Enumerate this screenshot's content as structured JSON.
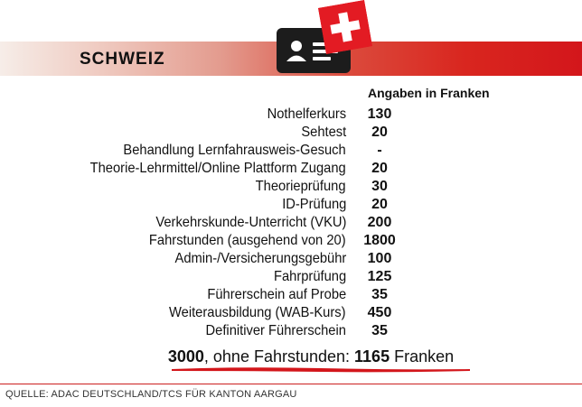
{
  "country": "SCHWEIZ",
  "unit_header": "Angaben in  Franken",
  "items": [
    {
      "label": "Nothelferkurs",
      "value": "130"
    },
    {
      "label": "Sehtest",
      "value": "20"
    },
    {
      "label": "Behandlung Lernfahrausweis-Gesuch",
      "value": "-"
    },
    {
      "label": "Theorie-Lehrmittel/Online Plattform Zugang",
      "value": "20"
    },
    {
      "label": "Theorieprüfung",
      "value": "30"
    },
    {
      "label": "ID-Prüfung",
      "value": "20"
    },
    {
      "label": "Verkehrskunde-Unterricht (VKU)",
      "value": "200"
    },
    {
      "label": "Fahrstunden (ausgehend von 20)",
      "value": "1800"
    },
    {
      "label": "Admin-/Versicherungsgebühr",
      "value": "100"
    },
    {
      "label": "Fahrprüfung",
      "value": "125"
    },
    {
      "label": "Führerschein auf Probe",
      "value": "35"
    },
    {
      "label": "Weiterausbildung (WAB-Kurs)",
      "value": "450"
    },
    {
      "label": "Definitiver Führerschein",
      "value": "35"
    }
  ],
  "total": {
    "amount": "3000",
    "middle": ", ohne Fahrstunden: ",
    "amount_without": "1165",
    "unit": " Franken"
  },
  "source": "QUELLE: ADAC DEUTSCHLAND/TCS FÜR KANTON AARGAU",
  "colors": {
    "accent": "#d3161b",
    "flag_red": "#e31b23",
    "card": "#1c1c1c"
  }
}
